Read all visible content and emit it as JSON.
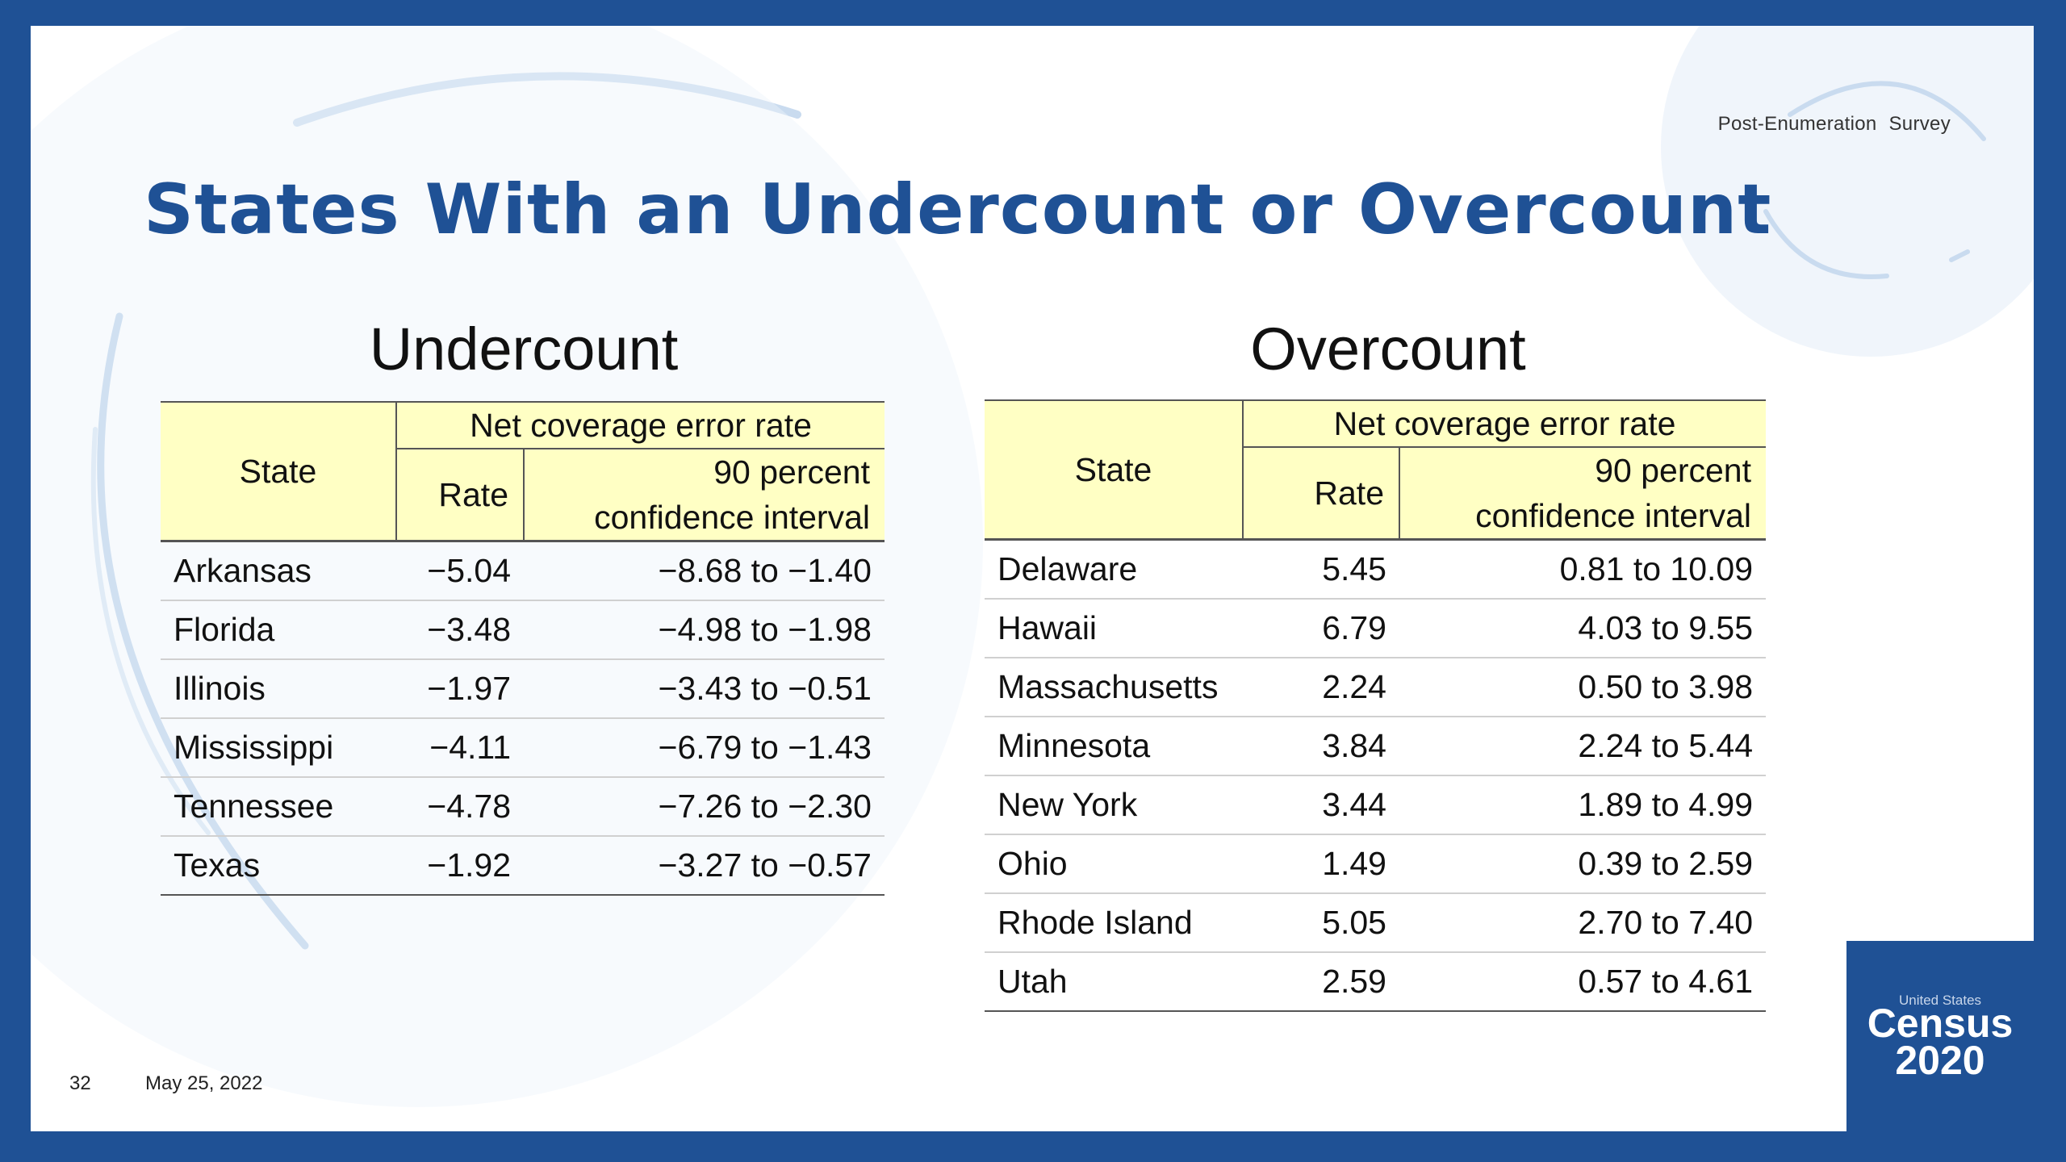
{
  "header": {
    "survey_label": "Post-Enumeration  Survey",
    "title": "States With an Undercount or Overcount"
  },
  "undercount": {
    "heading": "Undercount",
    "columns": {
      "state": "State",
      "group": "Net coverage error rate",
      "rate": "Rate",
      "ci_line1": "90 percent",
      "ci_line2": "confidence interval"
    },
    "rows": [
      {
        "state": "Arkansas",
        "rate": "−5.04",
        "ci": "−8.68 to −1.40"
      },
      {
        "state": "Florida",
        "rate": "−3.48",
        "ci": "−4.98 to −1.98"
      },
      {
        "state": "Illinois",
        "rate": "−1.97",
        "ci": "−3.43 to −0.51"
      },
      {
        "state": "Mississippi",
        "rate": "−4.11",
        "ci": "−6.79 to −1.43"
      },
      {
        "state": "Tennessee",
        "rate": "−4.78",
        "ci": "−7.26 to −2.30"
      },
      {
        "state": "Texas",
        "rate": "−1.92",
        "ci": "−3.27 to −0.57"
      }
    ]
  },
  "overcount": {
    "heading": "Overcount",
    "columns": {
      "state": "State",
      "group": "Net coverage error rate",
      "rate": "Rate",
      "ci_line1": "90 percent",
      "ci_line2": "confidence interval"
    },
    "rows": [
      {
        "state": "Delaware",
        "rate": "5.45",
        "ci": "0.81 to 10.09"
      },
      {
        "state": "Hawaii",
        "rate": "6.79",
        "ci": "4.03 to 9.55"
      },
      {
        "state": "Massachusetts",
        "rate": "2.24",
        "ci": "0.50 to 3.98"
      },
      {
        "state": "Minnesota",
        "rate": "3.84",
        "ci": "2.24 to 5.44"
      },
      {
        "state": "New York",
        "rate": "3.44",
        "ci": "1.89 to 4.99"
      },
      {
        "state": "Ohio",
        "rate": "1.49",
        "ci": "0.39 to 2.59"
      },
      {
        "state": "Rhode Island",
        "rate": "5.05",
        "ci": "2.70 to 7.40"
      },
      {
        "state": "Utah",
        "rate": "2.59",
        "ci": "0.57 to 4.61"
      }
    ]
  },
  "footer": {
    "page_number": "32",
    "date": "May 25, 2022"
  },
  "logo": {
    "line1": "United States",
    "line2": "Census",
    "line3": "2020"
  },
  "colors": {
    "brand_blue": "#1f5195",
    "header_yellow": "#ffffc4"
  }
}
